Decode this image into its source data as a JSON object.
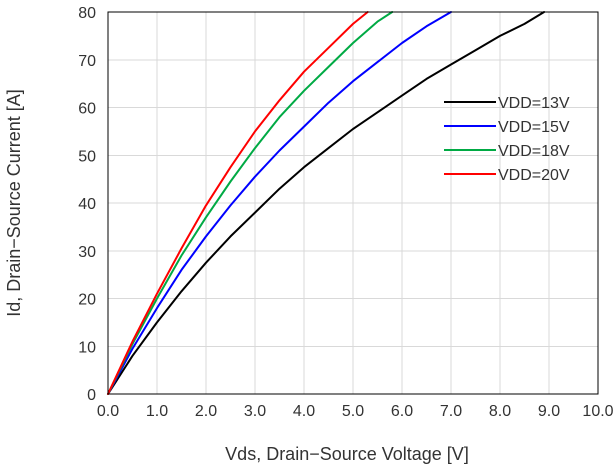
{
  "chart_data": {
    "type": "line",
    "title": "",
    "xlabel": "Vds, Drain−Source Voltage [V]",
    "ylabel": "Id, Drain−Source Current [A]",
    "xlim": [
      0,
      10
    ],
    "ylim": [
      0,
      80
    ],
    "x_ticks": [
      "0.0",
      "1.0",
      "2.0",
      "3.0",
      "4.0",
      "5.0",
      "6.0",
      "7.0",
      "8.0",
      "9.0",
      "10.0"
    ],
    "y_ticks": [
      "0",
      "10",
      "20",
      "30",
      "40",
      "50",
      "60",
      "70",
      "80"
    ],
    "grid": true,
    "legend_position": "right",
    "series": [
      {
        "name": "VDD=13V",
        "color": "#000000",
        "x": [
          0,
          0.5,
          1.0,
          1.5,
          2.0,
          2.5,
          3.0,
          3.5,
          4.0,
          4.5,
          5.0,
          5.5,
          6.0,
          6.5,
          7.0,
          7.5,
          8.0,
          8.5,
          8.9
        ],
        "y": [
          0,
          8,
          15,
          21.5,
          27.5,
          33,
          38,
          43,
          47.5,
          51.5,
          55.5,
          59,
          62.5,
          66,
          69,
          72,
          75,
          77.5,
          80
        ]
      },
      {
        "name": "VDD=15V",
        "color": "#0000ff",
        "x": [
          0,
          0.5,
          1.0,
          1.5,
          2.0,
          2.5,
          3.0,
          3.5,
          4.0,
          4.5,
          5.0,
          5.5,
          6.0,
          6.5,
          7.0
        ],
        "y": [
          0,
          9.5,
          18,
          26,
          33,
          39.5,
          45.5,
          51,
          56,
          61,
          65.5,
          69.5,
          73.5,
          77,
          80
        ]
      },
      {
        "name": "VDD=18V",
        "color": "#00aa44",
        "x": [
          0,
          0.5,
          1.0,
          1.5,
          2.0,
          2.5,
          3.0,
          3.5,
          4.0,
          4.5,
          5.0,
          5.5,
          5.8
        ],
        "y": [
          0,
          10.5,
          20,
          29,
          37,
          44.5,
          51.5,
          58,
          63.5,
          68.5,
          73.5,
          78,
          80
        ]
      },
      {
        "name": "VDD=20V",
        "color": "#ff0000",
        "x": [
          0,
          0.5,
          1.0,
          1.5,
          2.0,
          2.5,
          3.0,
          3.5,
          4.0,
          4.5,
          5.0,
          5.3
        ],
        "y": [
          0,
          11,
          21,
          30.5,
          39.5,
          47.5,
          55,
          61.5,
          67.5,
          72.5,
          77.5,
          80
        ]
      }
    ]
  }
}
